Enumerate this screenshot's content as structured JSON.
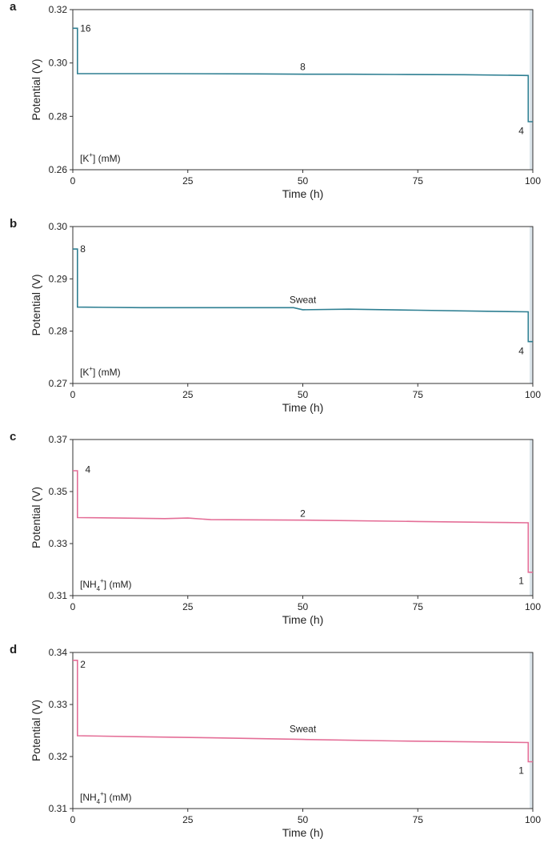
{
  "chart_data": [
    {
      "panel": "a",
      "type": "line",
      "xlabel": "Time (h)",
      "ylabel": "Potential (V)",
      "xlim": [
        0,
        100
      ],
      "ylim": [
        0.26,
        0.32
      ],
      "xticks": [
        "0",
        "25",
        "50",
        "75",
        "100"
      ],
      "yticks": [
        "0.26",
        "0.28",
        "0.30",
        "0.32"
      ],
      "color": "#2e7f92",
      "series": [
        {
          "x": [
            0,
            1,
            1,
            20,
            40,
            52,
            60,
            70,
            85,
            99,
            99,
            100
          ],
          "y": [
            0.313,
            0.313,
            0.296,
            0.296,
            0.2959,
            0.2958,
            0.2958,
            0.2957,
            0.2956,
            0.2953,
            0.278,
            0.278
          ]
        }
      ],
      "annotations": [
        {
          "text": "16",
          "x": 1.6,
          "y": 0.313
        },
        {
          "text": "8",
          "x": 50,
          "y": 0.2985
        },
        {
          "text": "4",
          "x": 97.5,
          "y": 0.2745
        }
      ],
      "ion_label": {
        "pre": "[K",
        "sup": "+",
        "sub": "",
        "post": "] (mM)"
      }
    },
    {
      "panel": "b",
      "type": "line",
      "xlabel": "Time (h)",
      "ylabel": "Potential (V)",
      "xlim": [
        0,
        100
      ],
      "ylim": [
        0.27,
        0.3
      ],
      "xticks": [
        "0",
        "25",
        "50",
        "75",
        "100"
      ],
      "yticks": [
        "0.27",
        "0.28",
        "0.29",
        "0.30"
      ],
      "color": "#2e7f92",
      "series": [
        {
          "x": [
            0,
            1,
            1,
            15,
            30,
            40,
            48,
            50,
            60,
            75,
            90,
            99,
            99,
            100
          ],
          "y": [
            0.2957,
            0.2957,
            0.2846,
            0.2845,
            0.2845,
            0.2845,
            0.2845,
            0.2841,
            0.2842,
            0.284,
            0.2838,
            0.2837,
            0.278,
            0.278
          ]
        }
      ],
      "annotations": [
        {
          "text": "8",
          "x": 1.6,
          "y": 0.2957
        },
        {
          "text": "Sweat",
          "x": 50,
          "y": 0.286
        },
        {
          "text": "4",
          "x": 97.5,
          "y": 0.2762
        }
      ],
      "ion_label": {
        "pre": "[K",
        "sup": "+",
        "sub": "",
        "post": "] (mM)"
      }
    },
    {
      "panel": "c",
      "type": "line",
      "xlabel": "Time (h)",
      "ylabel": "Potential (V)",
      "xlim": [
        0,
        100
      ],
      "ylim": [
        0.31,
        0.37
      ],
      "xticks": [
        "0",
        "25",
        "50",
        "75",
        "100"
      ],
      "yticks": [
        "0.31",
        "0.33",
        "0.35",
        "0.37"
      ],
      "color": "#e46e97",
      "series": [
        {
          "x": [
            0,
            1,
            1,
            10,
            20,
            25,
            30,
            50,
            75,
            90,
            99,
            99,
            100
          ],
          "y": [
            0.358,
            0.358,
            0.34,
            0.3398,
            0.3396,
            0.3398,
            0.3392,
            0.339,
            0.3385,
            0.3382,
            0.338,
            0.319,
            0.319
          ]
        }
      ],
      "annotations": [
        {
          "text": "4",
          "x": 2.7,
          "y": 0.3585
        },
        {
          "text": "2",
          "x": 50,
          "y": 0.3415
        },
        {
          "text": "1",
          "x": 97.5,
          "y": 0.3157
        }
      ],
      "ion_label": {
        "pre": "[NH",
        "sup": "+",
        "sub": "4",
        "post": "] (mM)"
      }
    },
    {
      "panel": "d",
      "type": "line",
      "xlabel": "Time (h)",
      "ylabel": "Potential (V)",
      "xlim": [
        0,
        100
      ],
      "ylim": [
        0.31,
        0.34
      ],
      "xticks": [
        "0",
        "25",
        "50",
        "75",
        "100"
      ],
      "yticks": [
        "0.31",
        "0.32",
        "0.33",
        "0.34"
      ],
      "color": "#e46e97",
      "series": [
        {
          "x": [
            0,
            1,
            1,
            15,
            30,
            50,
            70,
            90,
            99,
            99,
            100
          ],
          "y": [
            0.3385,
            0.3385,
            0.324,
            0.3238,
            0.3236,
            0.3233,
            0.323,
            0.3228,
            0.3227,
            0.319,
            0.319
          ]
        }
      ],
      "annotations": [
        {
          "text": "2",
          "x": 1.6,
          "y": 0.3377
        },
        {
          "text": "Sweat",
          "x": 50,
          "y": 0.3253
        },
        {
          "text": "1",
          "x": 97.5,
          "y": 0.3173
        }
      ],
      "ion_label": {
        "pre": "[NH",
        "sup": "+",
        "sub": "4",
        "post": "] (mM)"
      }
    }
  ]
}
